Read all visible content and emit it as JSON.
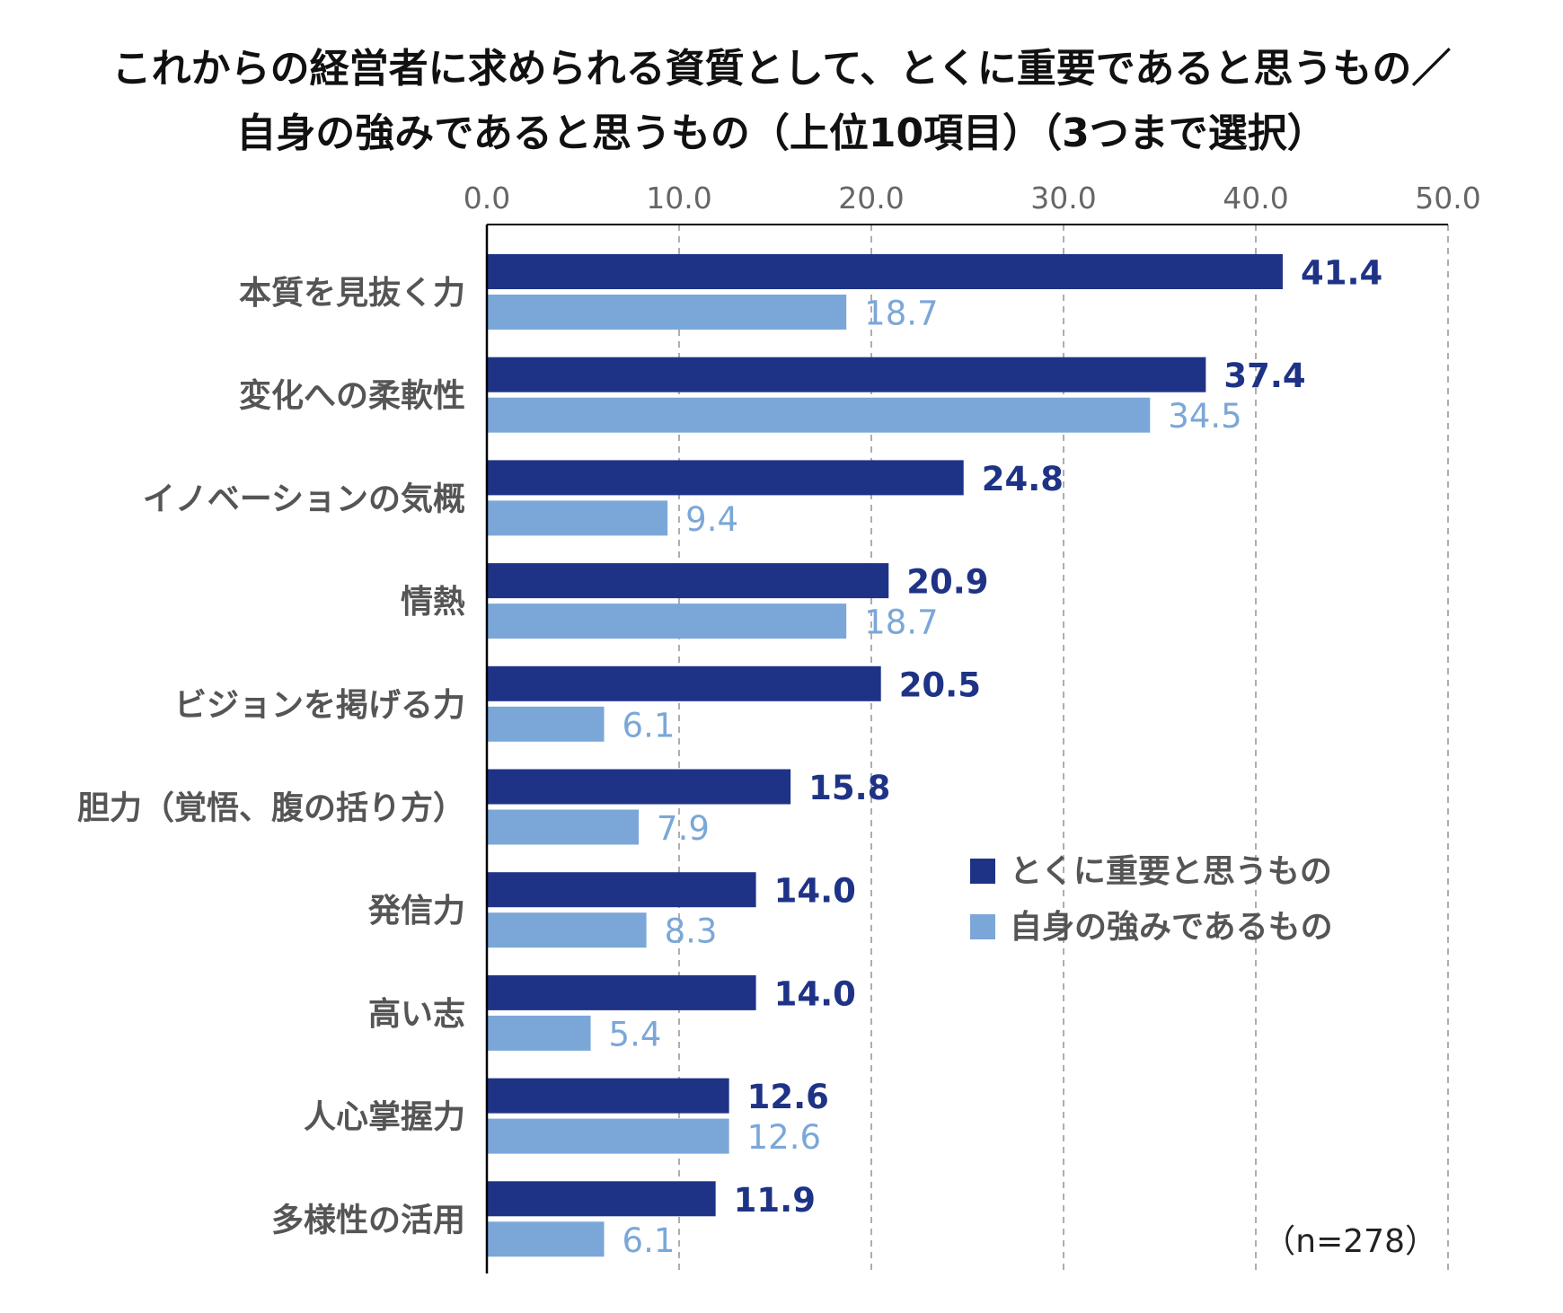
{
  "title_line1": "これからの経営者に求められる資質として、とくに重要であると思うもの／",
  "title_line2": "自身の強みであると思うもの（上位10項目）（3つまで選択）",
  "sample_note": "（n=278）",
  "colors": {
    "series1": "#1f3386",
    "series2": "#7ba7d8",
    "grid": "#9a9a9a",
    "axis": "#000000"
  },
  "chart_data": {
    "type": "bar",
    "orientation": "horizontal",
    "xlim": [
      0,
      50
    ],
    "x_ticks": [
      "0.0",
      "10.0",
      "20.0",
      "30.0",
      "40.0",
      "50.0"
    ],
    "x_tick_values": [
      0,
      10,
      20,
      30,
      40,
      50
    ],
    "grid": "vertical dashed",
    "legend_position": "center-right",
    "categories": [
      "本質を見抜く力",
      "変化への柔軟性",
      "イノベーションの気概",
      "情熱",
      "ビジョンを掲げる力",
      "胆力（覚悟、腹の括り方）",
      "発信力",
      "高い志",
      "人心掌握力",
      "多様性の活用"
    ],
    "series": [
      {
        "name": "とくに重要と思うもの",
        "values": [
          41.4,
          37.4,
          24.8,
          20.9,
          20.5,
          15.8,
          14.0,
          14.0,
          12.6,
          11.9
        ],
        "labels": [
          "41.4",
          "37.4",
          "24.8",
          "20.9",
          "20.5",
          "15.8",
          "14.0",
          "14.0",
          "12.6",
          "11.9"
        ]
      },
      {
        "name": "自身の強みであるもの",
        "values": [
          18.7,
          34.5,
          9.4,
          18.7,
          6.1,
          7.9,
          8.3,
          5.4,
          12.6,
          6.1
        ],
        "labels": [
          "18.7",
          "34.5",
          "9.4",
          "18.7",
          "6.1",
          "7.9",
          "8.3",
          "5.4",
          "12.6",
          "6.1"
        ]
      }
    ]
  }
}
